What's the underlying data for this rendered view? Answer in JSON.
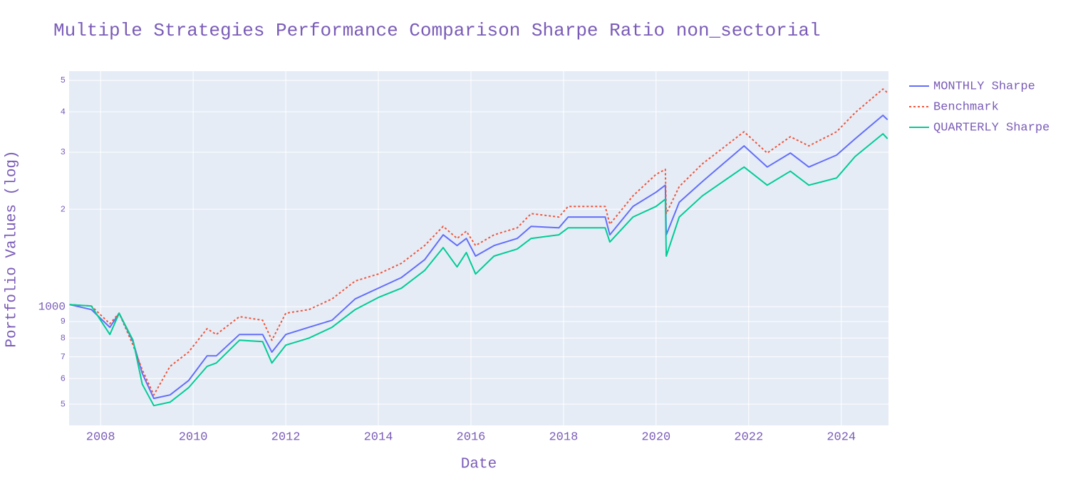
{
  "chart_data": {
    "type": "line",
    "title": "Multiple Strategies Performance Comparison Sharpe Ratio non_sectorial",
    "x_label": "Date",
    "y_label": "Portfolio Values (log)",
    "log_y": true,
    "grid": true,
    "legend": "outside-right",
    "x": [
      2007.33,
      2007.8,
      2008.2,
      2008.4,
      2008.7,
      2008.9,
      2009.15,
      2009.5,
      2009.9,
      2010.3,
      2010.5,
      2011.0,
      2011.5,
      2011.7,
      2012.0,
      2012.5,
      2013.0,
      2013.5,
      2014.0,
      2014.5,
      2015.0,
      2015.4,
      2015.7,
      2015.9,
      2016.1,
      2016.5,
      2017.0,
      2017.3,
      2017.9,
      2018.1,
      2018.9,
      2019.0,
      2019.5,
      2020.0,
      2020.2,
      2020.22,
      2020.5,
      2021.0,
      2021.9,
      2022.4,
      2022.9,
      2023.3,
      2023.9,
      2024.3,
      2024.9,
      2025.0
    ],
    "series": [
      {
        "name": "MONTHLY Sharpe",
        "color": "#636efa",
        "dash": "solid",
        "values": [
          1015,
          980,
          864,
          955,
          780,
          622,
          521,
          534,
          591,
          705,
          705,
          821,
          821,
          724,
          821,
          864,
          908,
          1057,
          1141,
          1231,
          1397,
          1667,
          1545,
          1625,
          1433,
          1545,
          1625,
          1771,
          1752,
          1892,
          1892,
          1667,
          2040,
          2258,
          2373,
          1667,
          2101,
          2436,
          3138,
          2700,
          2983,
          2700,
          2940,
          3300,
          3900,
          3780
        ]
      },
      {
        "name": "Benchmark",
        "color": "#ef553b",
        "dash": "dot",
        "values": [
          1015,
          1005,
          886,
          955,
          761,
          638,
          534,
          654,
          724,
          855,
          821,
          932,
          908,
          788,
          955,
          980,
          1057,
          1200,
          1262,
          1362,
          1545,
          1771,
          1625,
          1710,
          1545,
          1667,
          1752,
          1939,
          1892,
          2040,
          2040,
          1797,
          2200,
          2563,
          2655,
          1939,
          2350,
          2763,
          3470,
          2983,
          3350,
          3138,
          3470,
          3974,
          4700,
          4582
        ]
      },
      {
        "name": "QUARTERLY Sharpe",
        "color": "#00cc96",
        "dash": "solid",
        "values": [
          1015,
          1005,
          821,
          955,
          788,
          576,
          495,
          507,
          562,
          654,
          670,
          788,
          780,
          670,
          761,
          800,
          864,
          980,
          1068,
          1141,
          1294,
          1522,
          1327,
          1470,
          1262,
          1433,
          1507,
          1625,
          1667,
          1752,
          1752,
          1584,
          1892,
          2040,
          2147,
          1433,
          1892,
          2200,
          2700,
          2373,
          2621,
          2373,
          2498,
          2910,
          3420,
          3300
        ]
      }
    ],
    "xlim": [
      2007.32,
      2025.02
    ],
    "xticks": [
      2008,
      2010,
      2012,
      2014,
      2016,
      2018,
      2020,
      2022,
      2024
    ],
    "ylim": [
      430,
      5340
    ],
    "yticks": [
      {
        "value": 500,
        "label": "5"
      },
      {
        "value": 600,
        "label": "6"
      },
      {
        "value": 700,
        "label": "7"
      },
      {
        "value": 800,
        "label": "8"
      },
      {
        "value": 900,
        "label": "9"
      },
      1000,
      {
        "value": 2000,
        "label": "2"
      },
      {
        "value": 3000,
        "label": "3"
      },
      {
        "value": 4000,
        "label": "4"
      },
      {
        "value": 5000,
        "label": "5"
      }
    ]
  }
}
